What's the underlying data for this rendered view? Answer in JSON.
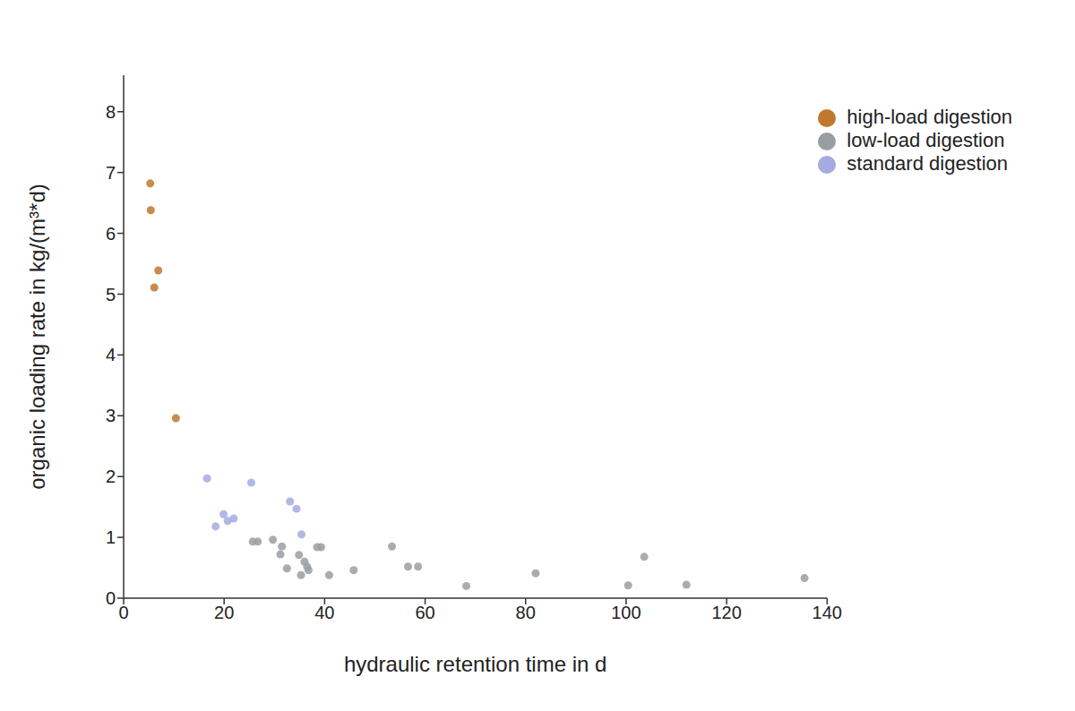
{
  "chart_data": {
    "type": "scatter",
    "x_label": "hydraulic retention time in d",
    "y_label": "organic loading rate in kg/(m³*d)",
    "xlim": [
      0,
      140
    ],
    "ylim": [
      0,
      8.6
    ],
    "xticks": [
      0,
      20,
      40,
      60,
      80,
      100,
      120,
      140
    ],
    "yticks": [
      0,
      1,
      2,
      3,
      4,
      5,
      6,
      7,
      8
    ],
    "grid": false,
    "legend": "top-right",
    "series": [
      {
        "name": "high-load digestion",
        "color": "#c0782f",
        "x": [
          5.3,
          5.4,
          6.9,
          6.1,
          10.4
        ],
        "values": [
          6.82,
          6.38,
          5.39,
          5.11,
          2.96
        ]
      },
      {
        "name": "standard digestion",
        "color": "#a5abe0",
        "x": [
          16.6,
          25.4,
          19.9,
          18.3,
          20.7,
          21.9,
          33.1,
          34.4,
          35.4
        ],
        "values": [
          1.97,
          1.9,
          1.38,
          1.18,
          1.27,
          1.31,
          1.59,
          1.47,
          1.05
        ]
      },
      {
        "name": "low-load digestion",
        "color": "#9a9da3",
        "x": [
          25.7,
          26.7,
          29.7,
          31.5,
          31.2,
          32.5,
          34.9,
          36.0,
          36.5,
          36.8,
          35.3,
          38.5,
          39.3,
          40.9,
          45.8,
          53.4,
          56.6,
          58.6,
          68.2,
          82.0,
          100.4,
          103.6,
          112.0,
          135.5
        ],
        "values": [
          0.93,
          0.93,
          0.96,
          0.85,
          0.72,
          0.49,
          0.71,
          0.6,
          0.52,
          0.46,
          0.38,
          0.84,
          0.84,
          0.38,
          0.46,
          0.85,
          0.52,
          0.52,
          0.2,
          0.41,
          0.21,
          0.68,
          0.22,
          0.33
        ]
      }
    ]
  }
}
